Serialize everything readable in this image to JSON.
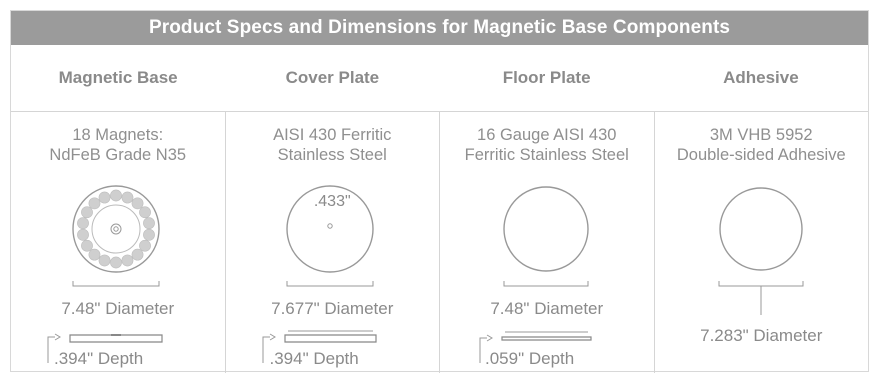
{
  "title": "Product Specs and Dimensions for Magnetic Base Components",
  "columns": [
    {
      "header": "Magnetic Base",
      "material_line1": "18 Magnets:",
      "material_line2": "NdFeB Grade N35",
      "diameter": "7.48\" Diameter",
      "depth": ".394\" Depth"
    },
    {
      "header": "Cover Plate",
      "material_line1": "AISI 430 Ferritic",
      "material_line2": "Stainless Steel",
      "hole_label": ".433\"",
      "diameter": "7.677\" Diameter",
      "depth": ".394\" Depth"
    },
    {
      "header": "Floor Plate",
      "material_line1": "16 Gauge AISI 430",
      "material_line2": "Ferritic Stainless Steel",
      "diameter": "7.48\" Diameter",
      "depth": ".059\" Depth"
    },
    {
      "header": "Adhesive",
      "material_line1": "3M VHB 5952",
      "material_line2": "Double-sided Adhesive",
      "diameter": "7.283\" Diameter"
    }
  ],
  "colors": {
    "title_bar": "#9b9b9b",
    "text": "#8a8a8a",
    "lines": "#999999",
    "magnet_fill": "#cfcfcf"
  },
  "magnet_count": 18,
  "icons": [
    "magnetic-base-drawing",
    "cover-plate-drawing",
    "floor-plate-drawing",
    "adhesive-drawing",
    "depth-arrow-icon"
  ]
}
